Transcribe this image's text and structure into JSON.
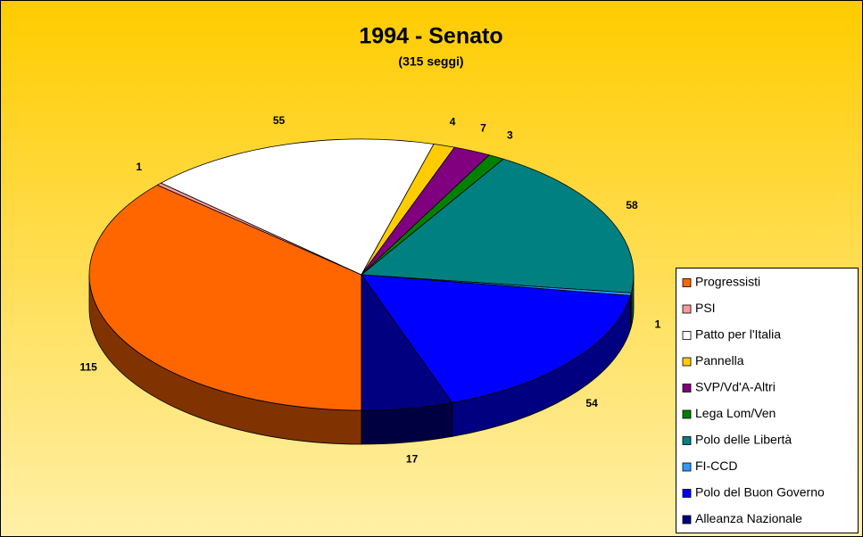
{
  "chart_data": {
    "type": "pie",
    "title": "1994 - Senato",
    "subtitle": "(315 seggi)",
    "categories": [
      "Progressisti",
      "PSI",
      "Patto per l'Italia",
      "Pannella",
      "SVP/Vd'A-Altri",
      "Lega Lom/Ven",
      "Polo delle Libertà",
      "FI-CCD",
      "Polo del Buon Governo",
      "Alleanza Nazionale"
    ],
    "values": [
      115,
      1,
      55,
      4,
      7,
      3,
      58,
      1,
      54,
      17
    ],
    "colors": [
      "#ff6600",
      "#ff9999",
      "#ffffff",
      "#ffcc00",
      "#800080",
      "#008000",
      "#008080",
      "#3399ff",
      "#0000ff",
      "#000080"
    ],
    "legend": "right"
  }
}
